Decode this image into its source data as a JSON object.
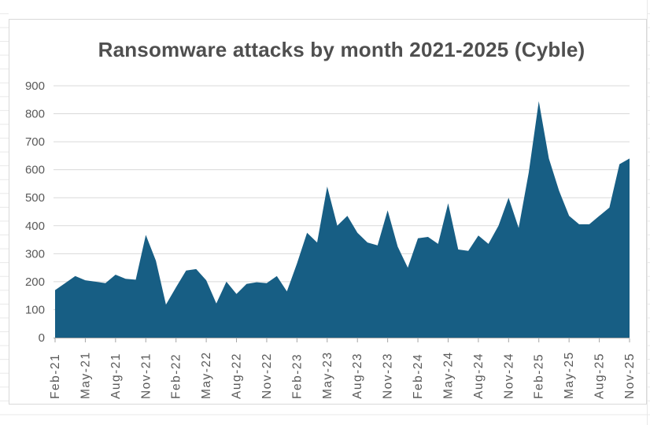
{
  "chart": {
    "title": "Ransomware attacks by month 2021-2025 (Cyble)",
    "colors": {
      "area_fill": "#175e84",
      "plot_gridline": "#d9d9d9",
      "axis_line": "#a6a6a6",
      "tick_label": "#595959",
      "title_text": "#4f4f4f",
      "chart_border": "#d9d9d9",
      "sheet_gridline": "#e9e9e9",
      "background": "#ffffff"
    }
  },
  "chart_data": {
    "type": "area",
    "title": "Ransomware attacks by month 2021-2025 (Cyble)",
    "x": [
      "Feb-21",
      "Mar-21",
      "Apr-21",
      "May-21",
      "Jun-21",
      "Jul-21",
      "Aug-21",
      "Sep-21",
      "Oct-21",
      "Nov-21",
      "Dec-21",
      "Jan-22",
      "Feb-22",
      "Mar-22",
      "Apr-22",
      "May-22",
      "Jun-22",
      "Jul-22",
      "Aug-22",
      "Sep-22",
      "Oct-22",
      "Nov-22",
      "Dec-22",
      "Jan-23",
      "Feb-23",
      "Mar-23",
      "Apr-23",
      "May-23",
      "Jun-23",
      "Jul-23",
      "Aug-23",
      "Sep-23",
      "Oct-23",
      "Nov-23",
      "Dec-23",
      "Jan-24",
      "Feb-24",
      "Mar-24",
      "Apr-24",
      "May-24",
      "Jun-24",
      "Jul-24",
      "Aug-24",
      "Sep-24",
      "Oct-24",
      "Nov-24",
      "Dec-24",
      "Jan-25",
      "Feb-25",
      "Mar-25",
      "Apr-25",
      "May-25",
      "Jun-25",
      "Jul-25",
      "Aug-25",
      "Sep-25",
      "Oct-25",
      "Nov-25"
    ],
    "values": [
      170,
      195,
      220,
      205,
      200,
      195,
      225,
      210,
      207,
      367,
      275,
      118,
      180,
      240,
      245,
      205,
      122,
      200,
      156,
      192,
      198,
      195,
      220,
      165,
      265,
      375,
      340,
      540,
      400,
      435,
      375,
      340,
      330,
      455,
      325,
      250,
      355,
      360,
      335,
      480,
      315,
      310,
      365,
      335,
      400,
      500,
      392,
      590,
      845,
      640,
      525,
      435,
      405,
      405,
      435,
      465,
      620,
      640
    ],
    "x_axis_tick_labels": [
      "Feb-21",
      "May-21",
      "Aug-21",
      "Nov-21",
      "Feb-22",
      "May-22",
      "Aug-22",
      "Nov-22",
      "Feb-23",
      "May-23",
      "Aug-23",
      "Nov-23",
      "Feb-24",
      "May-24",
      "Aug-24",
      "Nov-24",
      "Feb-25",
      "May-25",
      "Aug-25",
      "Nov-25"
    ],
    "y_ticks": [
      0,
      100,
      200,
      300,
      400,
      500,
      600,
      700,
      800,
      900
    ],
    "ylim": [
      0,
      900
    ],
    "xlabel": "",
    "ylabel": "",
    "grid": "horizontal",
    "legend": "none"
  }
}
